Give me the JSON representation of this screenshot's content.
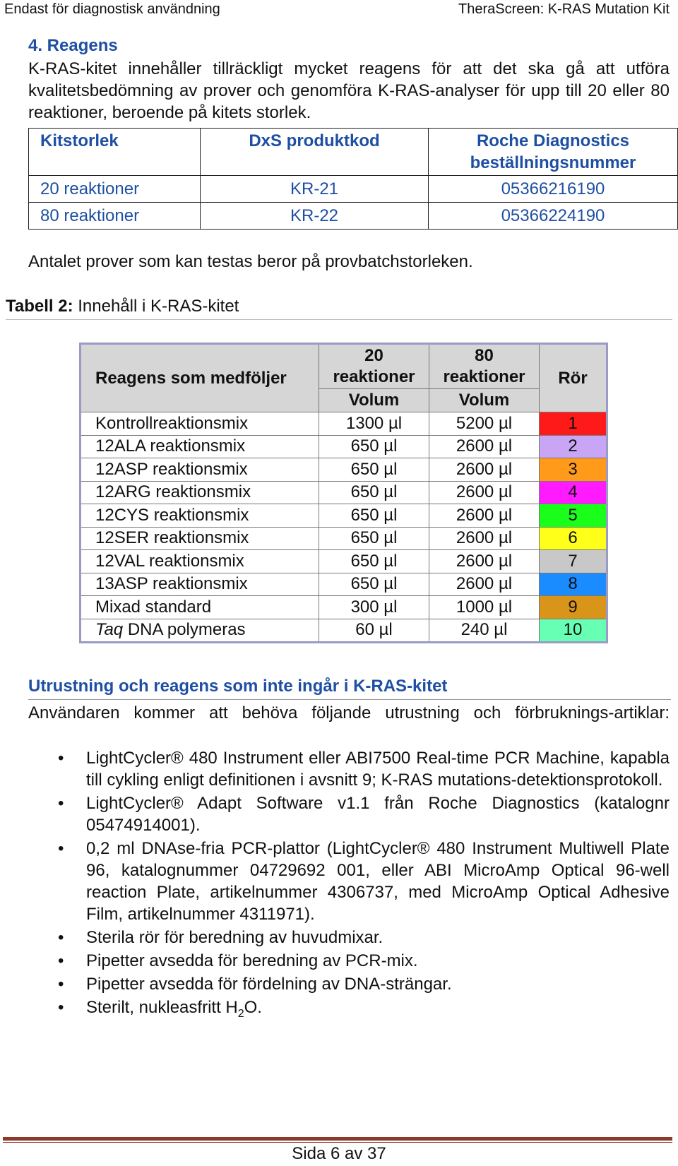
{
  "header": {
    "left": "Endast för diagnostisk användning",
    "right": "TheraScreen: K-RAS Mutation Kit"
  },
  "section": {
    "title": "4. Reagens",
    "intro": "K-RAS-kitet innehåller tillräckligt mycket reagens för att det ska gå att utföra kvalitetsbedömning av prover och genomföra K-RAS-analyser för upp till 20 eller 80 reaktioner, beroende på kitets storlek."
  },
  "kit_table": {
    "headers": [
      "Kitstorlek",
      "DxS produktkod",
      "Roche Diagnostics beställningsnummer"
    ],
    "rows": [
      [
        "20 reaktioner",
        "KR-21",
        "05366216190"
      ],
      [
        "80 reaktioner",
        "KR-22",
        "05366224190"
      ]
    ]
  },
  "note": "Antalet prover som kan testas beror på provbatchstorleken.",
  "table2": {
    "caption_bold": "Tabell 2:",
    "caption_rest": " Innehåll i K-RAS-kitet",
    "header": {
      "reagent": "Reagens som medföljer",
      "col20": "20 reaktioner",
      "col80": "80 reaktioner",
      "volume": "Volum",
      "tube": "Rör"
    },
    "rows": [
      {
        "name": "Kontrollreaktionsmix",
        "v20": "1300 µl",
        "v80": "5200 µl",
        "tube": "1",
        "color": "#ff1a1a"
      },
      {
        "name": "12ALA reaktionsmix",
        "v20": "650 µl",
        "v80": "2600 µl",
        "tube": "2",
        "color": "#c9a6f5"
      },
      {
        "name": "12ASP reaktionsmix",
        "v20": "650 µl",
        "v80": "2600 µl",
        "tube": "3",
        "color": "#ff9a1a"
      },
      {
        "name": "12ARG reaktionsmix",
        "v20": "650 µl",
        "v80": "2600 µl",
        "tube": "4",
        "color": "#ff1aff"
      },
      {
        "name": "12CYS reaktionsmix",
        "v20": "650 µl",
        "v80": "2600 µl",
        "tube": "5",
        "color": "#1aff1a"
      },
      {
        "name": "12SER reaktionsmix",
        "v20": "650 µl",
        "v80": "2600 µl",
        "tube": "6",
        "color": "#ffff1a"
      },
      {
        "name": "12VAL reaktionsmix",
        "v20": "650 µl",
        "v80": "2600 µl",
        "tube": "7",
        "color": "#c8c8c8"
      },
      {
        "name": "13ASP reaktionsmix",
        "v20": "650 µl",
        "v80": "2600 µl",
        "tube": "8",
        "color": "#1a8cff"
      },
      {
        "name": "Mixad standard",
        "v20": "300 µl",
        "v80": "1000 µl",
        "tube": "9",
        "color": "#d9951a"
      },
      {
        "name_italic": "Taq",
        "name": " DNA polymeras",
        "v20": "60 µl",
        "v80": "240 µl",
        "tube": "10",
        "color": "#66ffb3"
      }
    ]
  },
  "equipment": {
    "title": "Utrustning och reagens som inte ingår i K-RAS-kitet",
    "intro": "Användaren kommer att behöva följande utrustning och förbruknings-artiklar:",
    "bullet": "•",
    "items": [
      "LightCycler® 480 Instrument eller ABI7500 Real-time PCR Machine, kapabla till cykling enligt definitionen i avsnitt 9; K-RAS mutations-detektionsprotokoll.",
      "LightCycler® Adapt Software v1.1 från Roche Diagnostics (katalognr 05474914001).",
      "0,2 ml DNAse-fria PCR-plattor (LightCycler® 480 Instrument Multiwell Plate 96, katalognummer 04729692 001, eller ABI MicroAmp Optical 96-well reaction Plate, artikelnummer 4306737, med MicroAmp Optical Adhesive Film, artikelnummer 4311971).",
      "Sterila rör för beredning av huvudmixar.",
      "Pipetter avsedda för beredning av PCR-mix.",
      "Pipetter avsedda för fördelning av DNA-strängar."
    ],
    "last_item_pre": "Sterilt, nukleasfritt H",
    "last_item_sub": "2",
    "last_item_post": "O."
  },
  "footer": "Sida 6 av 37"
}
